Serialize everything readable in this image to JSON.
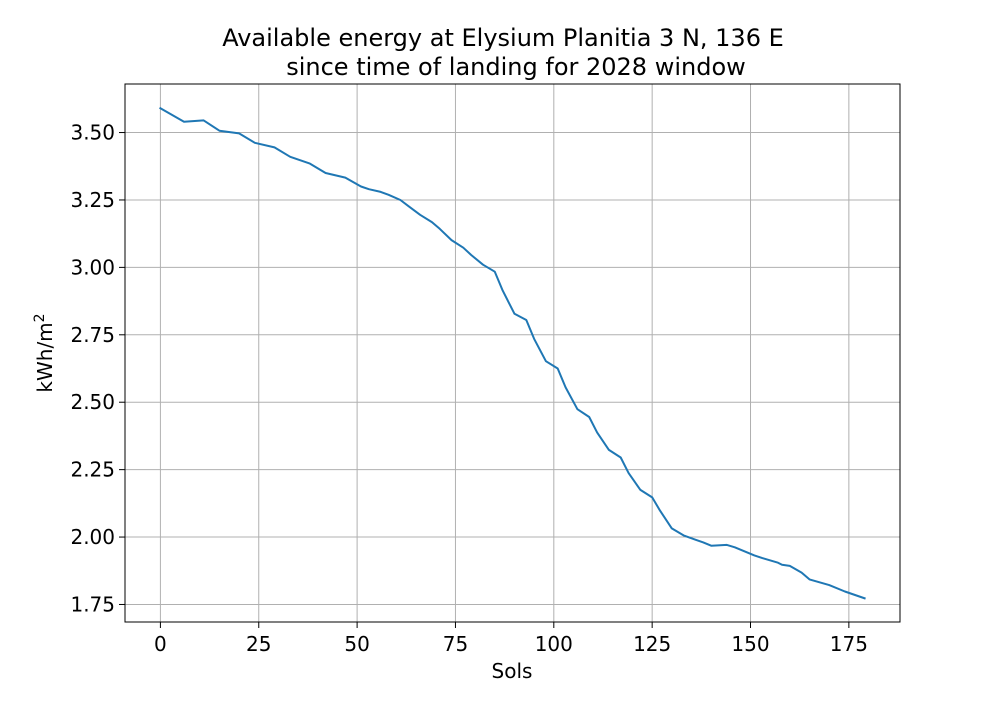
{
  "chart_data": {
    "type": "line",
    "title_line1": "Available energy at Elysium Planitia 3 N, 136 E",
    "title_line2": "since time of landing for 2028 window",
    "xlabel": "Sols",
    "ylabel_base": "kWh/m",
    "ylabel_sup": "2",
    "xlim": [
      -9,
      188
    ],
    "ylim": [
      1.685,
      3.68
    ],
    "xticks": [
      0,
      25,
      50,
      75,
      100,
      125,
      150,
      175
    ],
    "xtick_labels": [
      "0",
      "25",
      "50",
      "75",
      "100",
      "125",
      "150",
      "175"
    ],
    "yticks": [
      1.75,
      2.0,
      2.25,
      2.5,
      2.75,
      3.0,
      3.25,
      3.5
    ],
    "ytick_labels": [
      "1.75",
      "2.00",
      "2.25",
      "2.50",
      "2.75",
      "3.00",
      "3.25",
      "3.50"
    ],
    "grid": true,
    "line_color": "#1f77b4",
    "series": [
      {
        "x": [
          0,
          6,
          11,
          15,
          20,
          24,
          29,
          33,
          38,
          42,
          47,
          51,
          53,
          56,
          58,
          61,
          63,
          66,
          69,
          71,
          74,
          77,
          79,
          82,
          85,
          87,
          90,
          93,
          95,
          98,
          101,
          103,
          106,
          109,
          111,
          114,
          117,
          119,
          122,
          125,
          127,
          130,
          133,
          136,
          138,
          140,
          144,
          146,
          151,
          153,
          157,
          158,
          160,
          163,
          165,
          170,
          174,
          179
        ],
        "y": [
          3.59,
          3.54,
          3.545,
          3.507,
          3.497,
          3.462,
          3.445,
          3.41,
          3.385,
          3.35,
          3.333,
          3.3,
          3.29,
          3.28,
          3.269,
          3.25,
          3.228,
          3.195,
          3.168,
          3.143,
          3.101,
          3.073,
          3.046,
          3.01,
          2.984,
          2.914,
          2.828,
          2.805,
          2.735,
          2.652,
          2.625,
          2.555,
          2.474,
          2.445,
          2.388,
          2.323,
          2.295,
          2.237,
          2.175,
          2.147,
          2.098,
          2.032,
          2.006,
          1.99,
          1.98,
          1.968,
          1.971,
          1.962,
          1.932,
          1.922,
          1.905,
          1.897,
          1.893,
          1.868,
          1.843,
          1.822,
          1.798,
          1.773
        ]
      }
    ]
  }
}
